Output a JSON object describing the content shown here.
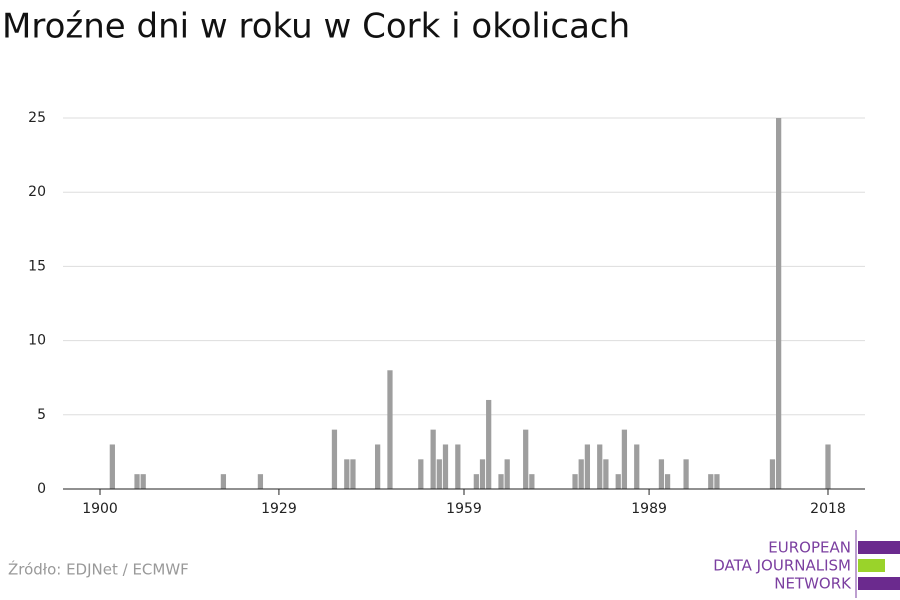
{
  "chart_data": {
    "type": "bar",
    "title": "Mroźne dni w roku w Cork i okolicach",
    "x": [
      1902,
      1906,
      1907,
      1920,
      1926,
      1938,
      1940,
      1941,
      1945,
      1947,
      1952,
      1954,
      1955,
      1956,
      1958,
      1961,
      1962,
      1963,
      1965,
      1966,
      1969,
      1970,
      1977,
      1978,
      1979,
      1981,
      1982,
      1984,
      1985,
      1987,
      1991,
      1992,
      1995,
      1999,
      2000,
      2009,
      2010,
      2018
    ],
    "values": [
      3,
      1,
      1,
      1,
      1,
      4,
      2,
      2,
      3,
      8,
      2,
      4,
      2,
      3,
      3,
      1,
      2,
      6,
      1,
      2,
      4,
      1,
      1,
      2,
      3,
      3,
      2,
      1,
      4,
      3,
      2,
      1,
      2,
      1,
      1,
      2,
      25,
      3
    ],
    "color": "#9e9e9e",
    "xlim": [
      1894,
      2024
    ],
    "xticks": [
      1900,
      1929,
      1959,
      1989,
      2018
    ],
    "ylim": [
      0,
      25
    ],
    "yticks": [
      0,
      5,
      10,
      15,
      20,
      25
    ],
    "grid": true,
    "source": "Źródło: EDJNet / ECMWF",
    "logo": [
      "EUROPEAN",
      "DATA JOURNALISM",
      "NETWORK"
    ]
  }
}
